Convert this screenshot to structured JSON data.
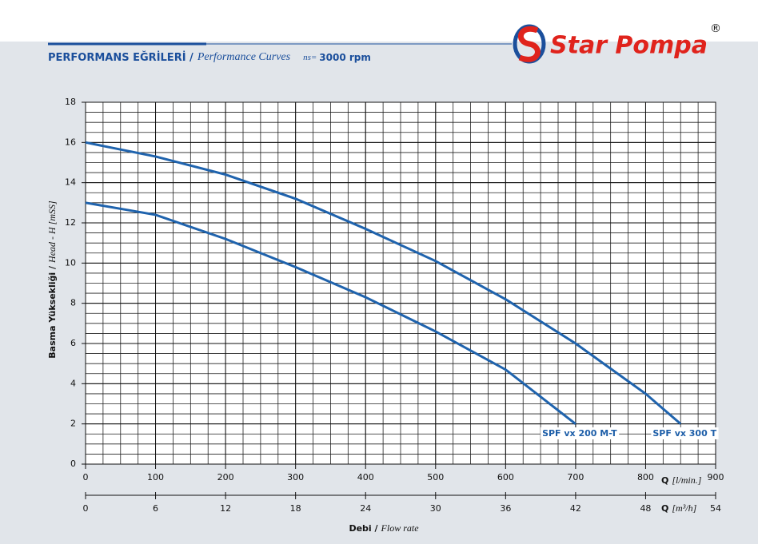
{
  "logo": {
    "text": "Star Pompa",
    "mark": "®"
  },
  "chart_data": {
    "type": "line",
    "title": "PERFORMANS EĞRİLERİ /",
    "subtitle": "Performance Curves",
    "speed_label": "ns=",
    "speed": "3000 rpm",
    "ylabel": "Basma Yüksekliği /",
    "ylabel_en": "Head - H [mSS]",
    "xlabel_symbol": "Q",
    "xlabel_unit": "[l/min.]",
    "x2label_symbol": "Q",
    "x2label_unit": "[m³/h]",
    "xlabel_bottom": "Debi /",
    "xlabel_bottom_en": "Flow rate",
    "xlim": [
      0,
      900
    ],
    "xticks": [
      0,
      100,
      200,
      300,
      400,
      500,
      600,
      700,
      800,
      900
    ],
    "x2lim": [
      0,
      54
    ],
    "x2ticks": [
      0,
      6,
      12,
      18,
      24,
      30,
      36,
      42,
      48,
      54
    ],
    "ylim": [
      0,
      18
    ],
    "yticks": [
      0,
      2,
      4,
      6,
      8,
      10,
      12,
      14,
      16,
      18
    ],
    "grid": true,
    "x_minor_step": 25,
    "y_minor_step": 0.5,
    "series": [
      {
        "name": "SPF vx 200 M-T",
        "color": "#1f63ad",
        "x": [
          0,
          100,
          200,
          300,
          400,
          500,
          600,
          700
        ],
        "values": [
          13,
          12.4,
          11.2,
          9.8,
          8.3,
          6.6,
          4.7,
          2
        ]
      },
      {
        "name": "SPF vx 300 T",
        "color": "#1f63ad",
        "x": [
          0,
          100,
          200,
          300,
          400,
          500,
          600,
          700,
          800,
          850
        ],
        "values": [
          16,
          15.3,
          14.4,
          13.2,
          11.7,
          10.1,
          8.2,
          6,
          3.5,
          2
        ]
      }
    ]
  }
}
